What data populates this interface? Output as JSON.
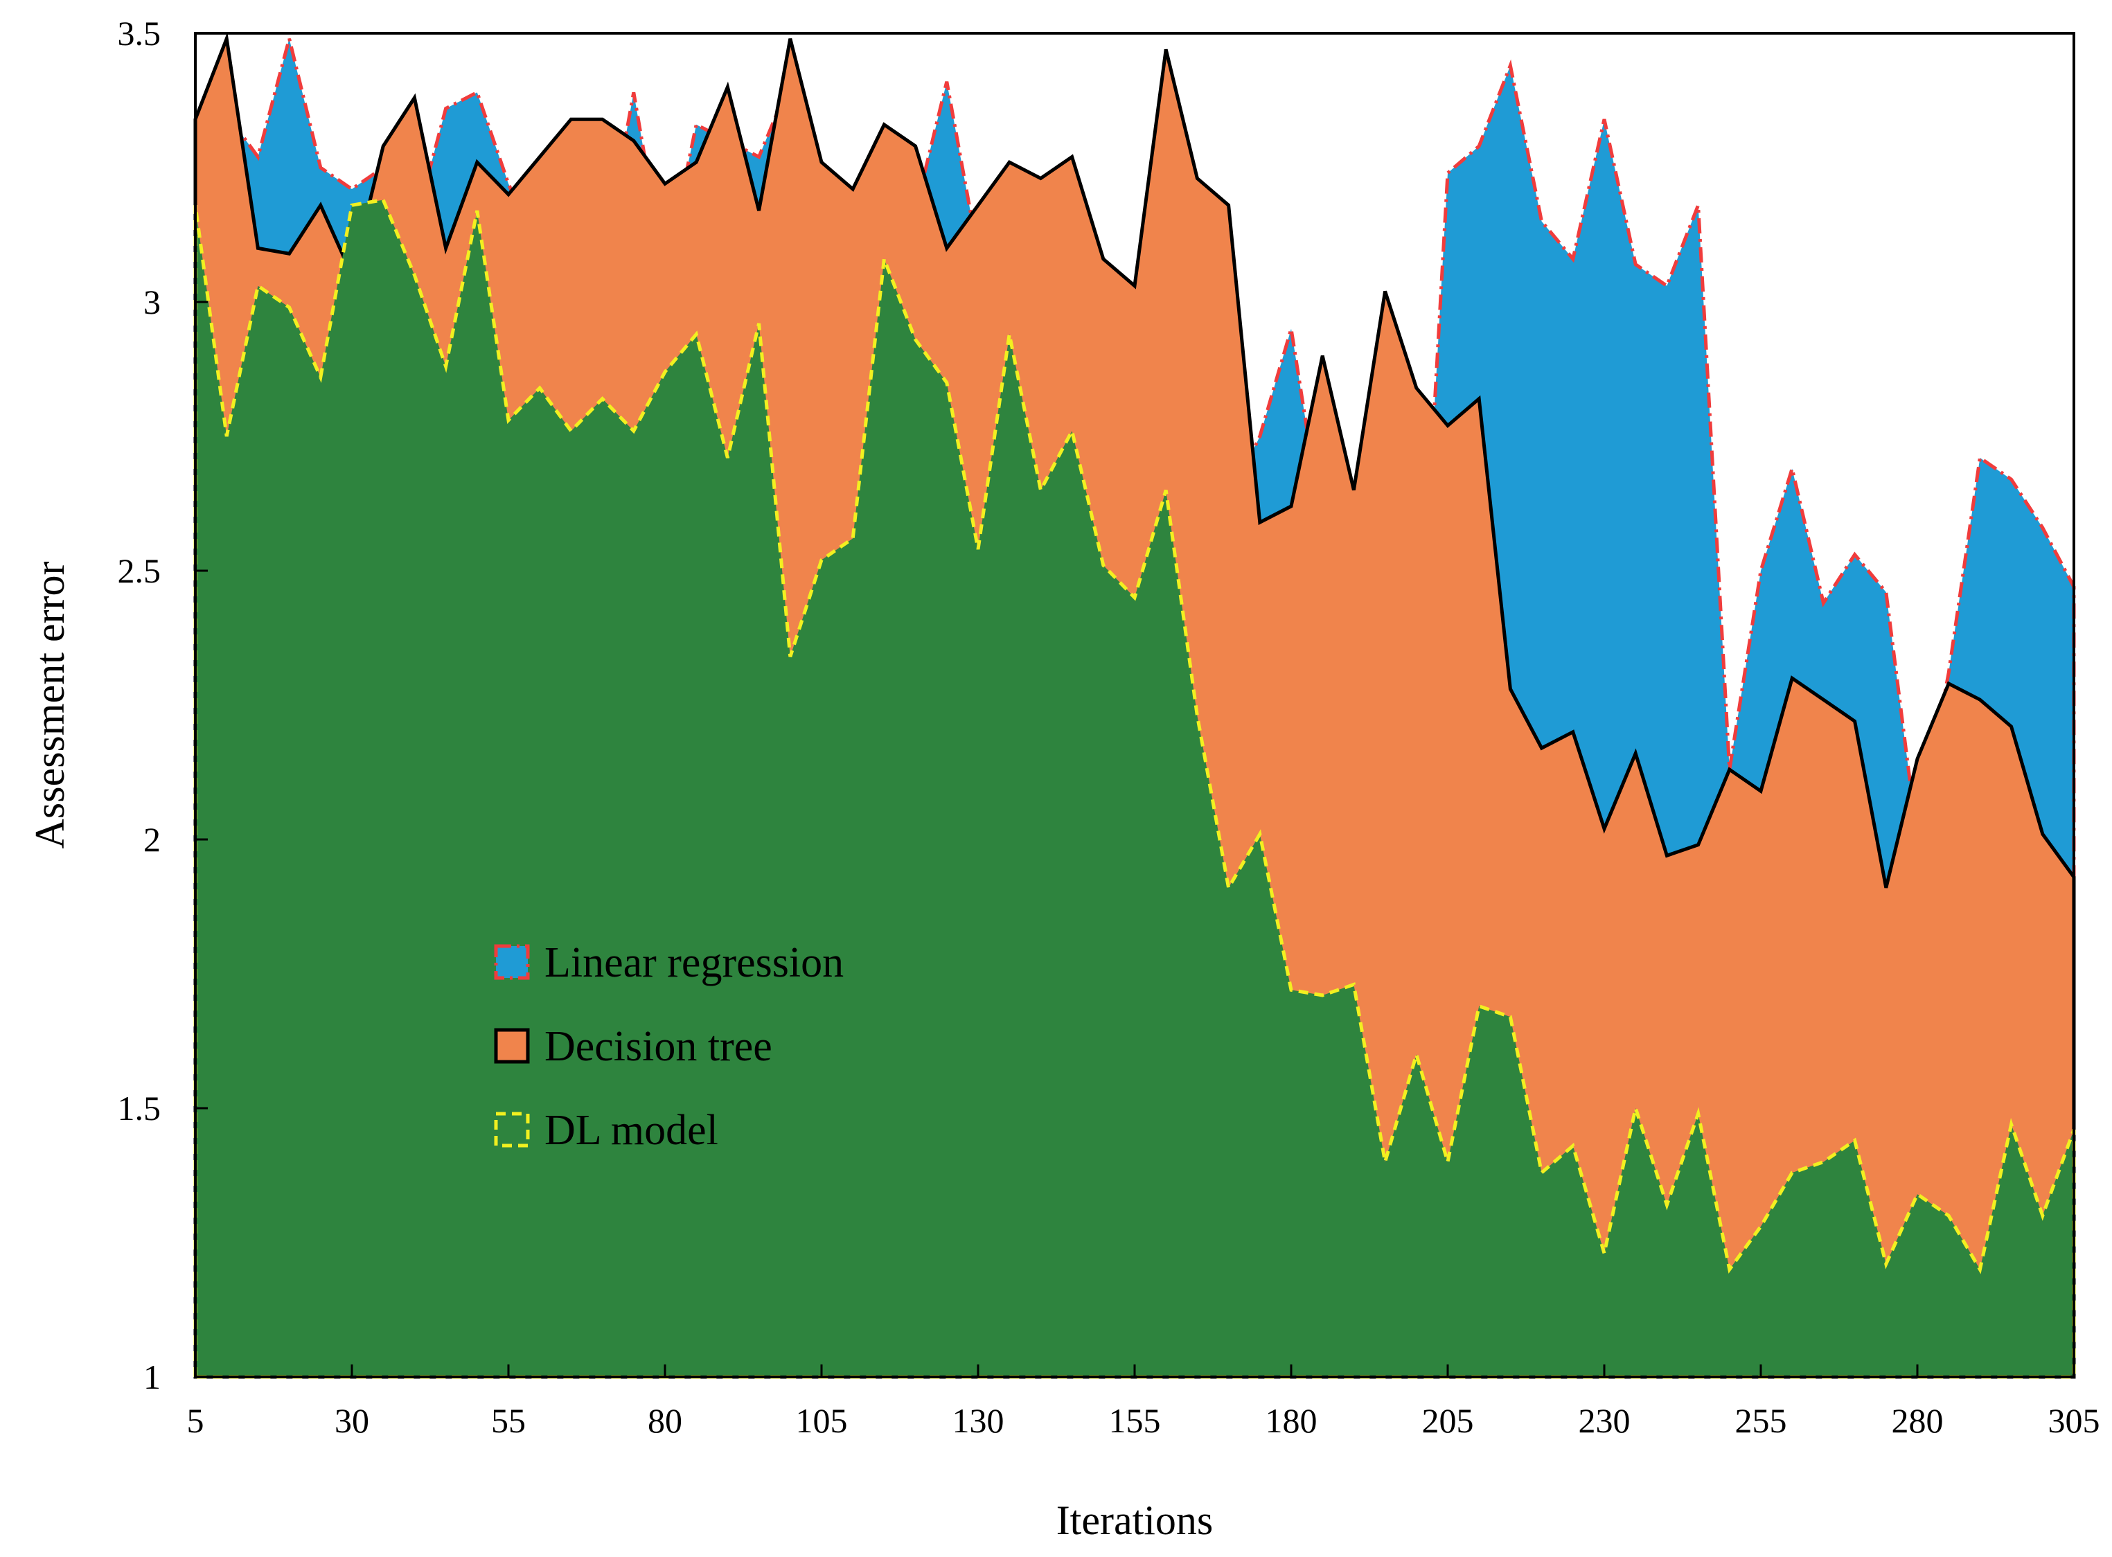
{
  "chart_data": {
    "type": "area",
    "title": "",
    "xlabel": "Iterations",
    "ylabel": "Assessment error",
    "xlim": [
      5,
      305
    ],
    "ylim": [
      1,
      3.5
    ],
    "grid": false,
    "xticks": [
      "5",
      "30",
      "55",
      "80",
      "105",
      "130",
      "155",
      "180",
      "205",
      "230",
      "255",
      "280",
      "305"
    ],
    "yticks": [
      "1",
      "1.5",
      "2",
      "2.5",
      "3",
      "3.5"
    ],
    "legend_position": "center-left",
    "x": [
      5,
      10,
      15,
      20,
      25,
      30,
      35,
      40,
      45,
      50,
      55,
      60,
      65,
      70,
      75,
      80,
      85,
      90,
      95,
      100,
      105,
      110,
      115,
      120,
      125,
      130,
      135,
      140,
      145,
      150,
      155,
      160,
      165,
      170,
      175,
      180,
      185,
      190,
      195,
      200,
      205,
      210,
      215,
      220,
      225,
      230,
      235,
      240,
      245,
      250,
      255,
      260,
      265,
      270,
      275,
      280,
      285,
      290,
      295,
      300,
      305
    ],
    "series": [
      {
        "name": "Linear regression",
        "fill": "#1f9bd5",
        "stroke": "#f03c3c",
        "dash": "dash-dot",
        "values": [
          3.24,
          3.35,
          3.27,
          3.49,
          3.25,
          3.21,
          3.25,
          3.14,
          3.36,
          3.39,
          3.22,
          3.09,
          3.19,
          3.07,
          3.39,
          3.05,
          3.33,
          3.3,
          3.27,
          3.41,
          3.24,
          2.56,
          3.09,
          3.17,
          3.41,
          3.09,
          3.07,
          3.06,
          3.1,
          2.6,
          2.91,
          2.59,
          2.69,
          2.63,
          2.75,
          2.95,
          2.58,
          2.23,
          2.09,
          2.21,
          3.24,
          3.29,
          3.44,
          3.15,
          3.08,
          3.34,
          3.07,
          3.03,
          3.18,
          2.13,
          2.5,
          2.69,
          2.44,
          2.53,
          2.46,
          2.0,
          2.31,
          2.71,
          2.67,
          2.58,
          2.47
        ]
      },
      {
        "name": "Decision tree",
        "fill": "#f0844c",
        "stroke": "#000000",
        "dash": "solid",
        "values": [
          3.34,
          3.49,
          3.1,
          3.09,
          3.18,
          3.05,
          3.29,
          3.38,
          3.1,
          3.26,
          3.2,
          3.27,
          3.34,
          3.34,
          3.3,
          3.22,
          3.26,
          3.4,
          3.17,
          3.49,
          3.26,
          3.21,
          3.33,
          3.29,
          3.1,
          3.18,
          3.26,
          3.23,
          3.27,
          3.08,
          3.03,
          3.47,
          3.23,
          3.18,
          2.59,
          2.62,
          2.9,
          2.65,
          3.02,
          2.84,
          2.77,
          2.82,
          2.28,
          2.17,
          2.2,
          2.02,
          2.16,
          1.97,
          1.99,
          2.13,
          2.09,
          2.3,
          2.26,
          2.22,
          1.91,
          2.15,
          2.29,
          2.26,
          2.21,
          2.01,
          1.93
        ]
      },
      {
        "name": "DL model",
        "fill": "#2e843e",
        "stroke": "#f2f020",
        "dash": "dashed",
        "values": [
          3.18,
          2.75,
          3.03,
          2.99,
          2.86,
          3.18,
          3.19,
          3.05,
          2.88,
          3.17,
          2.78,
          2.84,
          2.76,
          2.82,
          2.76,
          2.87,
          2.94,
          2.71,
          2.96,
          2.34,
          2.52,
          2.56,
          3.08,
          2.93,
          2.85,
          2.54,
          2.94,
          2.65,
          2.76,
          2.51,
          2.45,
          2.65,
          2.23,
          1.91,
          2.01,
          1.72,
          1.71,
          1.73,
          1.4,
          1.6,
          1.4,
          1.69,
          1.67,
          1.38,
          1.43,
          1.23,
          1.5,
          1.32,
          1.49,
          1.2,
          1.28,
          1.38,
          1.4,
          1.44,
          1.21,
          1.34,
          1.3,
          1.2,
          1.47,
          1.3,
          1.46
        ]
      }
    ]
  }
}
